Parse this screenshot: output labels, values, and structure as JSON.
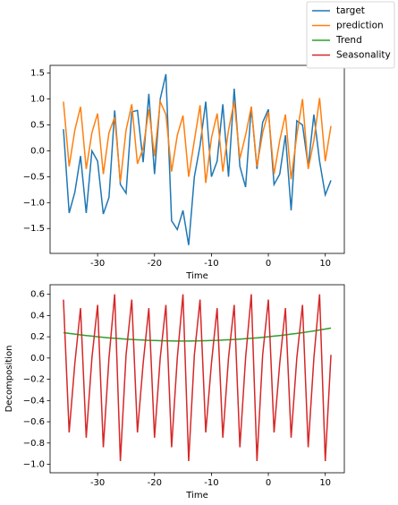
{
  "chart_data": [
    {
      "type": "line",
      "xlabel": "Time",
      "x": [
        -36,
        -35,
        -34,
        -33,
        -32,
        -31,
        -30,
        -29,
        -28,
        -27,
        -26,
        -25,
        -24,
        -23,
        -22,
        -21,
        -20,
        -19,
        -18,
        -17,
        -16,
        -15,
        -14,
        -13,
        -12,
        -11,
        -10,
        -9,
        -8,
        -7,
        -6,
        -5,
        -4,
        -3,
        -2,
        -1,
        0,
        1,
        2,
        3,
        4,
        5,
        6,
        7,
        8,
        9,
        10,
        11
      ],
      "xlim": [
        -38.35,
        13.35
      ],
      "xticks": [
        -30,
        -20,
        -10,
        0,
        10
      ],
      "ylim": [
        -1.98,
        1.65
      ],
      "yticks": [
        {
          "value": -1.5,
          "label": "−1.5"
        },
        {
          "value": -1,
          "label": "−1.0"
        },
        {
          "value": -0.5,
          "label": "−0.5"
        },
        {
          "value": 0,
          "label": "0.0"
        },
        0.5,
        {
          "value": 1,
          "label": "1.0"
        },
        1.5
      ],
      "series": [
        {
          "name": "target",
          "color": "#1f77b4",
          "values": [
            0.42,
            -1.2,
            -0.8,
            -0.1,
            -1.2,
            0.0,
            -0.2,
            -1.22,
            -0.9,
            0.78,
            -0.65,
            -0.82,
            0.75,
            0.78,
            -0.22,
            1.1,
            -0.45,
            1.0,
            1.48,
            -1.35,
            -1.52,
            -1.15,
            -1.82,
            -0.5,
            0.1,
            0.95,
            -0.5,
            -0.2,
            0.9,
            -0.5,
            1.2,
            -0.3,
            -0.7,
            0.85,
            -0.35,
            0.55,
            0.8,
            -0.65,
            -0.45,
            0.3,
            -1.15,
            0.58,
            0.5,
            -0.3,
            0.7,
            -0.2,
            -0.85,
            -0.57
          ]
        },
        {
          "name": "prediction",
          "color": "#ff7f0e",
          "values": [
            0.95,
            -0.3,
            0.4,
            0.85,
            -0.35,
            0.35,
            0.72,
            -0.45,
            0.35,
            0.65,
            -0.6,
            0.4,
            0.9,
            -0.25,
            0.05,
            0.8,
            -0.1,
            0.95,
            0.7,
            -0.4,
            0.3,
            0.68,
            -0.5,
            0.2,
            0.88,
            -0.62,
            0.25,
            0.72,
            -0.4,
            0.4,
            0.95,
            -0.15,
            0.3,
            0.85,
            -0.3,
            0.35,
            0.75,
            -0.45,
            0.2,
            0.7,
            -0.55,
            0.3,
            1.0,
            -0.35,
            0.2,
            1.02,
            -0.2,
            0.48
          ]
        }
      ]
    },
    {
      "type": "line",
      "xlabel": "Time",
      "ylabel": "Decomposition",
      "x": [
        -36,
        -35,
        -34,
        -33,
        -32,
        -31,
        -30,
        -29,
        -28,
        -27,
        -26,
        -25,
        -24,
        -23,
        -22,
        -21,
        -20,
        -19,
        -18,
        -17,
        -16,
        -15,
        -14,
        -13,
        -12,
        -11,
        -10,
        -9,
        -8,
        -7,
        -6,
        -5,
        -4,
        -3,
        -2,
        -1,
        0,
        1,
        2,
        3,
        4,
        5,
        6,
        7,
        8,
        9,
        10,
        11
      ],
      "xlim": [
        -38.35,
        13.35
      ],
      "xticks": [
        -30,
        -20,
        -10,
        0,
        10
      ],
      "ylim": [
        -1.08,
        0.69
      ],
      "yticks": [
        {
          "value": -1,
          "label": "−1.0"
        },
        {
          "value": -0.8,
          "label": "−0.8"
        },
        {
          "value": -0.6,
          "label": "−0.6"
        },
        {
          "value": -0.4,
          "label": "−0.4"
        },
        {
          "value": -0.2,
          "label": "−0.2"
        },
        {
          "value": 0,
          "label": "0.0"
        },
        0.2,
        0.4,
        0.6
      ],
      "series": [
        {
          "name": "Trend",
          "color": "#2ca02c",
          "values": [
            0.239,
            0.232,
            0.225,
            0.218,
            0.212,
            0.206,
            0.2,
            0.195,
            0.19,
            0.186,
            0.182,
            0.178,
            0.175,
            0.172,
            0.169,
            0.166,
            0.165,
            0.163,
            0.162,
            0.161,
            0.16,
            0.16,
            0.16,
            0.161,
            0.162,
            0.163,
            0.165,
            0.166,
            0.169,
            0.172,
            0.175,
            0.178,
            0.182,
            0.186,
            0.19,
            0.195,
            0.2,
            0.206,
            0.212,
            0.218,
            0.225,
            0.232,
            0.239,
            0.247,
            0.255,
            0.264,
            0.273,
            0.282
          ]
        },
        {
          "name": "Seasonality",
          "color": "#d62728",
          "values": [
            0.55,
            -0.7,
            -0.05,
            0.47,
            -0.75,
            0.0,
            0.5,
            -0.84,
            0.0,
            0.6,
            -0.97,
            0.03,
            0.55,
            -0.7,
            -0.05,
            0.47,
            -0.75,
            0.0,
            0.5,
            -0.84,
            0.0,
            0.6,
            -0.97,
            0.03,
            0.55,
            -0.7,
            -0.05,
            0.47,
            -0.75,
            0.0,
            0.5,
            -0.84,
            0.0,
            0.6,
            -0.97,
            0.03,
            0.55,
            -0.7,
            -0.05,
            0.47,
            -0.75,
            0.0,
            0.5,
            -0.84,
            0.0,
            0.6,
            -0.97,
            0.03
          ]
        }
      ]
    }
  ]
}
